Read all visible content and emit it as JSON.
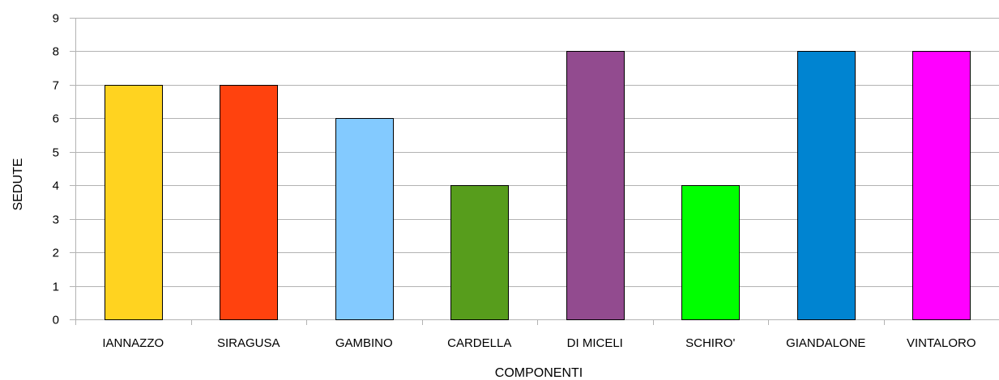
{
  "chart_data": {
    "type": "bar",
    "title": "",
    "xlabel": "COMPONENTI",
    "ylabel": "SEDUTE",
    "ylim": [
      0,
      9
    ],
    "yticks": [
      0,
      1,
      2,
      3,
      4,
      5,
      6,
      7,
      8,
      9
    ],
    "grid": true,
    "legend": "none",
    "categories": [
      "IANNAZZO",
      "SIRAGUSA",
      "GAMBINO",
      "CARDELLA",
      "DI MICELI",
      "SCHIRO'",
      "GIANDALONE",
      "VINTALORO"
    ],
    "values": [
      7,
      7,
      6,
      4,
      8,
      4,
      8,
      8
    ],
    "colors": [
      "#ffd320",
      "#ff420e",
      "#83caff",
      "#579d1c",
      "#924b8f",
      "#00ff00",
      "#0084d1",
      "#ff00ff"
    ]
  }
}
